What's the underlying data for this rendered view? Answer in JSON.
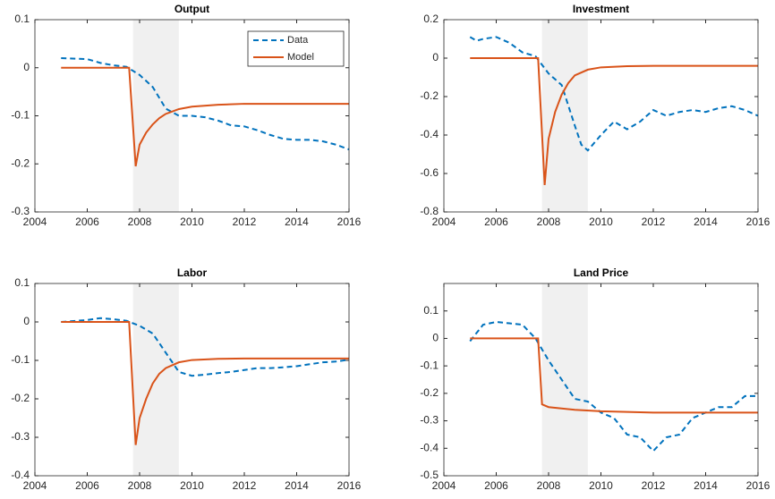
{
  "chart_data": [
    {
      "type": "line",
      "title": "Output",
      "xlim": [
        2004,
        2016
      ],
      "xticks": [
        2004,
        2006,
        2008,
        2010,
        2012,
        2014,
        2016
      ],
      "ylim": [
        -0.3,
        0.1
      ],
      "yticks": [
        -0.3,
        -0.2,
        -0.1,
        0,
        0.1
      ],
      "shaded_region": [
        2007.75,
        2009.5
      ],
      "legend": "upper right",
      "series": [
        {
          "name": "Data",
          "color": "#0072BD",
          "dash": true,
          "x": [
            2005,
            2006,
            2006.5,
            2007,
            2007.5,
            2008,
            2008.5,
            2009,
            2009.5,
            2010,
            2010.5,
            2011,
            2011.5,
            2012,
            2012.5,
            2013,
            2013.5,
            2014,
            2014.5,
            2015,
            2015.5,
            2016
          ],
          "values": [
            0.02,
            0.018,
            0.01,
            0.005,
            0.002,
            -0.015,
            -0.04,
            -0.085,
            -0.1,
            -0.1,
            -0.103,
            -0.11,
            -0.12,
            -0.122,
            -0.13,
            -0.14,
            -0.148,
            -0.15,
            -0.15,
            -0.153,
            -0.16,
            -0.17
          ]
        },
        {
          "name": "Model",
          "color": "#D95319",
          "dash": false,
          "x": [
            2005,
            2007.6,
            2007.85,
            2008,
            2008.25,
            2008.5,
            2008.75,
            2009,
            2009.5,
            2010,
            2011,
            2012,
            2016
          ],
          "values": [
            0,
            0,
            -0.205,
            -0.16,
            -0.135,
            -0.118,
            -0.105,
            -0.096,
            -0.086,
            -0.081,
            -0.077,
            -0.075,
            -0.075
          ]
        }
      ]
    },
    {
      "type": "line",
      "title": "Investment",
      "xlim": [
        2004,
        2016
      ],
      "xticks": [
        2004,
        2006,
        2008,
        2010,
        2012,
        2014,
        2016
      ],
      "ylim": [
        -0.8,
        0.2
      ],
      "yticks": [
        -0.8,
        -0.6,
        -0.4,
        -0.2,
        0,
        0.2
      ],
      "shaded_region": [
        2007.75,
        2009.5
      ],
      "series": [
        {
          "name": "Data",
          "color": "#0072BD",
          "dash": true,
          "x": [
            2005,
            2005.25,
            2005.5,
            2006,
            2006.5,
            2007,
            2007.5,
            2008,
            2008.5,
            2009,
            2009.25,
            2009.5,
            2010,
            2010.5,
            2011,
            2011.5,
            2012,
            2012.5,
            2013,
            2013.5,
            2014,
            2014.5,
            2015,
            2015.5,
            2016
          ],
          "values": [
            0.11,
            0.09,
            0.1,
            0.11,
            0.08,
            0.03,
            0.01,
            -0.08,
            -0.14,
            -0.35,
            -0.45,
            -0.48,
            -0.4,
            -0.33,
            -0.37,
            -0.33,
            -0.27,
            -0.3,
            -0.28,
            -0.27,
            -0.28,
            -0.26,
            -0.25,
            -0.27,
            -0.3
          ]
        },
        {
          "name": "Model",
          "color": "#D95319",
          "dash": false,
          "x": [
            2005,
            2007.6,
            2007.85,
            2008,
            2008.25,
            2008.5,
            2008.75,
            2009,
            2009.5,
            2010,
            2011,
            2012,
            2016
          ],
          "values": [
            0,
            0,
            -0.66,
            -0.42,
            -0.28,
            -0.19,
            -0.13,
            -0.09,
            -0.06,
            -0.048,
            -0.042,
            -0.04,
            -0.04
          ]
        }
      ]
    },
    {
      "type": "line",
      "title": "Labor",
      "xlim": [
        2004,
        2016
      ],
      "xticks": [
        2004,
        2006,
        2008,
        2010,
        2012,
        2014,
        2016
      ],
      "ylim": [
        -0.4,
        0.1
      ],
      "yticks": [
        -0.4,
        -0.3,
        -0.2,
        -0.1,
        0,
        0.1
      ],
      "shaded_region": [
        2007.75,
        2009.5
      ],
      "series": [
        {
          "name": "Data",
          "color": "#0072BD",
          "dash": true,
          "x": [
            2005,
            2006,
            2006.5,
            2007,
            2007.5,
            2008,
            2008.5,
            2009,
            2009.5,
            2010,
            2010.5,
            2011,
            2011.5,
            2012,
            2012.5,
            2013,
            2013.5,
            2014,
            2014.5,
            2015,
            2015.5,
            2016
          ],
          "values": [
            0,
            0.005,
            0.01,
            0.007,
            0.003,
            -0.01,
            -0.03,
            -0.08,
            -0.13,
            -0.14,
            -0.137,
            -0.133,
            -0.13,
            -0.125,
            -0.12,
            -0.12,
            -0.118,
            -0.115,
            -0.11,
            -0.105,
            -0.103,
            -0.098
          ]
        },
        {
          "name": "Model",
          "color": "#D95319",
          "dash": false,
          "x": [
            2005,
            2007.6,
            2007.85,
            2008,
            2008.25,
            2008.5,
            2008.75,
            2009,
            2009.5,
            2010,
            2011,
            2012,
            2016
          ],
          "values": [
            0,
            0,
            -0.32,
            -0.25,
            -0.2,
            -0.16,
            -0.135,
            -0.12,
            -0.105,
            -0.099,
            -0.096,
            -0.095,
            -0.095
          ]
        }
      ]
    },
    {
      "type": "line",
      "title": "Land Price",
      "xlim": [
        2004,
        2016
      ],
      "xticks": [
        2004,
        2006,
        2008,
        2010,
        2012,
        2014,
        2016
      ],
      "ylim": [
        -0.5,
        0.2
      ],
      "yticks": [
        -0.5,
        -0.4,
        -0.3,
        -0.2,
        -0.1,
        0,
        0.1
      ],
      "shaded_region": [
        2007.75,
        2009.5
      ],
      "series": [
        {
          "name": "Data",
          "color": "#0072BD",
          "dash": true,
          "x": [
            2005,
            2005.25,
            2005.5,
            2006,
            2006.5,
            2007,
            2007.5,
            2008,
            2008.5,
            2009,
            2009.5,
            2010,
            2010.5,
            2011,
            2011.5,
            2012,
            2012.5,
            2013,
            2013.5,
            2014,
            2014.5,
            2015,
            2015.5,
            2016
          ],
          "values": [
            -0.01,
            0.02,
            0.05,
            0.06,
            0.055,
            0.05,
            0.0,
            -0.08,
            -0.15,
            -0.22,
            -0.23,
            -0.27,
            -0.29,
            -0.35,
            -0.36,
            -0.41,
            -0.36,
            -0.35,
            -0.29,
            -0.27,
            -0.25,
            -0.25,
            -0.21,
            -0.21
          ]
        },
        {
          "name": "Model",
          "color": "#D95319",
          "dash": false,
          "x": [
            2005,
            2007.6,
            2007.75,
            2008,
            2009,
            2010,
            2012,
            2016
          ],
          "values": [
            0,
            0,
            -0.24,
            -0.25,
            -0.26,
            -0.265,
            -0.27,
            -0.27
          ]
        }
      ]
    }
  ]
}
